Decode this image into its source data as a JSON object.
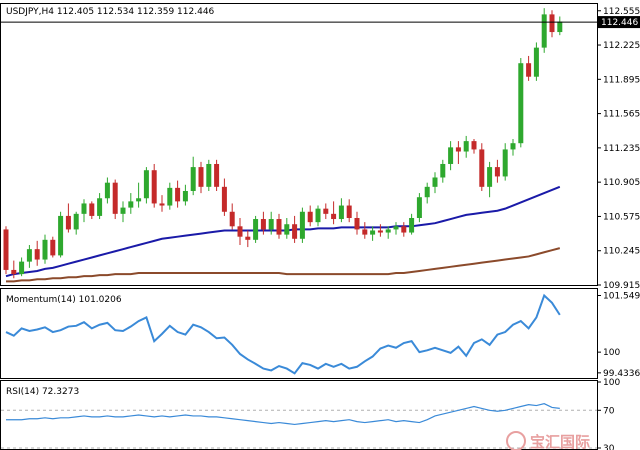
{
  "main_pane": {
    "header": "USDJPY,H4  112.405 112.534 112.359 112.446",
    "axis_labels": [
      "112.555",
      "112.225",
      "111.895",
      "111.565",
      "111.235",
      "110.905",
      "110.575",
      "110.245",
      "109.915"
    ],
    "current_price": "112.446",
    "axis_values": [
      112.555,
      112.225,
      111.895,
      111.565,
      111.235,
      110.905,
      110.575,
      110.245,
      109.915
    ]
  },
  "momentum_pane": {
    "header": "Momentum(14) 101.0206",
    "axis_labels": [
      "101.5495",
      "100",
      "99.4336"
    ],
    "axis_values": [
      101.5495,
      100,
      99.4336
    ]
  },
  "rsi_pane": {
    "header": "RSI(14) 72.3273",
    "axis_labels": [
      "100",
      "70",
      "30"
    ],
    "axis_values": [
      100,
      70,
      30
    ]
  },
  "watermark": {
    "text": "宝汇国际"
  },
  "colors": {
    "bull": "#2ea82e",
    "bear": "#c42a2a",
    "ma_fast": "#1a1aa8",
    "ma_slow": "#8b4a2b",
    "oscillator": "#3a8ad8",
    "watermark": "#e06464"
  },
  "chart_data": [
    {
      "type": "candlestick",
      "title": "USDJPY,H4",
      "ylim": [
        109.915,
        112.62
      ],
      "candles": [
        [
          110.45,
          110.48,
          110.02,
          110.06
        ],
        [
          110.06,
          110.15,
          109.98,
          110.02
        ],
        [
          110.02,
          110.18,
          110.0,
          110.14
        ],
        [
          110.14,
          110.3,
          110.08,
          110.26
        ],
        [
          110.26,
          110.34,
          110.1,
          110.16
        ],
        [
          110.16,
          110.4,
          110.12,
          110.35
        ],
        [
          110.35,
          110.38,
          110.18,
          110.2
        ],
        [
          110.2,
          110.62,
          110.18,
          110.58
        ],
        [
          110.58,
          110.7,
          110.42,
          110.45
        ],
        [
          110.45,
          110.62,
          110.4,
          110.6
        ],
        [
          110.6,
          110.74,
          110.52,
          110.7
        ],
        [
          110.7,
          110.72,
          110.55,
          110.58
        ],
        [
          110.58,
          110.8,
          110.55,
          110.75
        ],
        [
          110.75,
          110.95,
          110.7,
          110.9
        ],
        [
          110.9,
          110.93,
          110.55,
          110.6
        ],
        [
          110.6,
          110.72,
          110.52,
          110.66
        ],
        [
          110.66,
          110.8,
          110.6,
          110.72
        ],
        [
          110.72,
          110.9,
          110.66,
          110.75
        ],
        [
          110.75,
          111.05,
          110.7,
          111.02
        ],
        [
          111.02,
          111.08,
          110.66,
          110.7
        ],
        [
          110.7,
          110.78,
          110.62,
          110.68
        ],
        [
          110.68,
          110.9,
          110.64,
          110.85
        ],
        [
          110.85,
          110.92,
          110.66,
          110.72
        ],
        [
          110.72,
          110.88,
          110.68,
          110.82
        ],
        [
          110.82,
          111.15,
          110.78,
          111.05
        ],
        [
          111.05,
          111.1,
          110.8,
          110.86
        ],
        [
          110.86,
          111.12,
          110.82,
          111.08
        ],
        [
          111.08,
          111.12,
          110.82,
          110.86
        ],
        [
          110.86,
          110.94,
          110.58,
          110.62
        ],
        [
          110.62,
          110.7,
          110.45,
          110.48
        ],
        [
          110.48,
          110.56,
          110.3,
          110.38
        ],
        [
          110.38,
          110.44,
          110.28,
          110.35
        ],
        [
          110.35,
          110.58,
          110.32,
          110.55
        ],
        [
          110.55,
          110.62,
          110.4,
          110.45
        ],
        [
          110.45,
          110.62,
          110.4,
          110.55
        ],
        [
          110.55,
          110.6,
          110.36,
          110.4
        ],
        [
          110.4,
          110.56,
          110.36,
          110.5
        ],
        [
          110.5,
          110.58,
          110.32,
          110.36
        ],
        [
          110.36,
          110.66,
          110.32,
          110.62
        ],
        [
          110.62,
          110.68,
          110.48,
          110.52
        ],
        [
          110.52,
          110.68,
          110.48,
          110.65
        ],
        [
          110.65,
          110.7,
          110.55,
          110.6
        ],
        [
          110.6,
          110.72,
          110.5,
          110.55
        ],
        [
          110.55,
          110.75,
          110.52,
          110.68
        ],
        [
          110.68,
          110.74,
          110.52,
          110.56
        ],
        [
          110.56,
          110.62,
          110.4,
          110.45
        ],
        [
          110.45,
          110.52,
          110.36,
          110.4
        ],
        [
          110.4,
          110.48,
          110.34,
          110.44
        ],
        [
          110.44,
          110.5,
          110.38,
          110.42
        ],
        [
          110.42,
          110.48,
          110.36,
          110.45
        ],
        [
          110.45,
          110.52,
          110.4,
          110.48
        ],
        [
          110.48,
          110.52,
          110.38,
          110.42
        ],
        [
          110.42,
          110.6,
          110.4,
          110.56
        ],
        [
          110.56,
          110.8,
          110.52,
          110.76
        ],
        [
          110.76,
          110.9,
          110.7,
          110.86
        ],
        [
          110.86,
          111.0,
          110.8,
          110.95
        ],
        [
          110.95,
          111.12,
          110.9,
          111.08
        ],
        [
          111.08,
          111.3,
          111.02,
          111.24
        ],
        [
          111.24,
          111.3,
          111.08,
          111.2
        ],
        [
          111.2,
          111.35,
          111.14,
          111.3
        ],
        [
          111.3,
          111.32,
          111.18,
          111.22
        ],
        [
          111.22,
          111.28,
          110.82,
          110.86
        ],
        [
          110.86,
          111.1,
          110.76,
          111.05
        ],
        [
          111.05,
          111.12,
          110.9,
          110.96
        ],
        [
          110.96,
          111.28,
          110.92,
          111.22
        ],
        [
          111.22,
          111.32,
          111.16,
          111.28
        ],
        [
          111.28,
          112.1,
          111.24,
          112.05
        ],
        [
          112.05,
          112.12,
          111.88,
          111.92
        ],
        [
          111.92,
          112.25,
          111.88,
          112.2
        ],
        [
          112.2,
          112.58,
          112.15,
          112.52
        ],
        [
          112.52,
          112.56,
          112.3,
          112.35
        ],
        [
          112.35,
          112.5,
          112.32,
          112.45
        ]
      ],
      "ma_fast": [
        110.0,
        110.02,
        110.03,
        110.04,
        110.05,
        110.07,
        110.08,
        110.1,
        110.12,
        110.14,
        110.16,
        110.18,
        110.2,
        110.22,
        110.24,
        110.26,
        110.28,
        110.3,
        110.32,
        110.34,
        110.36,
        110.37,
        110.38,
        110.39,
        110.4,
        110.41,
        110.42,
        110.43,
        110.44,
        110.44,
        110.44,
        110.44,
        110.44,
        110.44,
        110.44,
        110.44,
        110.44,
        110.45,
        110.45,
        110.45,
        110.46,
        110.46,
        110.46,
        110.47,
        110.47,
        110.47,
        110.47,
        110.47,
        110.47,
        110.47,
        110.48,
        110.48,
        110.48,
        110.49,
        110.5,
        110.51,
        110.53,
        110.55,
        110.57,
        110.59,
        110.6,
        110.61,
        110.62,
        110.63,
        110.65,
        110.68,
        110.71,
        110.74,
        110.77,
        110.8,
        110.83,
        110.86
      ],
      "ma_slow": [
        109.95,
        109.95,
        109.96,
        109.96,
        109.97,
        109.97,
        109.98,
        109.98,
        109.99,
        109.99,
        110.0,
        110.0,
        110.01,
        110.01,
        110.02,
        110.02,
        110.02,
        110.03,
        110.03,
        110.03,
        110.03,
        110.03,
        110.03,
        110.03,
        110.03,
        110.03,
        110.03,
        110.03,
        110.03,
        110.03,
        110.03,
        110.03,
        110.03,
        110.03,
        110.03,
        110.03,
        110.02,
        110.02,
        110.02,
        110.02,
        110.02,
        110.02,
        110.02,
        110.02,
        110.02,
        110.02,
        110.02,
        110.02,
        110.02,
        110.02,
        110.03,
        110.03,
        110.04,
        110.05,
        110.06,
        110.07,
        110.08,
        110.09,
        110.1,
        110.11,
        110.12,
        110.13,
        110.14,
        110.15,
        110.16,
        110.17,
        110.18,
        110.19,
        110.21,
        110.23,
        110.25,
        110.27
      ]
    },
    {
      "type": "line",
      "title": "Momentum(14)",
      "ylim": [
        99.32,
        101.7
      ],
      "values": [
        100.55,
        100.45,
        100.65,
        100.58,
        100.62,
        100.68,
        100.55,
        100.6,
        100.7,
        100.72,
        100.82,
        100.65,
        100.75,
        100.8,
        100.6,
        100.58,
        100.7,
        100.85,
        100.95,
        100.3,
        100.5,
        100.72,
        100.55,
        100.48,
        100.75,
        100.68,
        100.55,
        100.38,
        100.4,
        100.2,
        99.95,
        99.8,
        99.68,
        99.55,
        99.5,
        99.62,
        99.55,
        99.42,
        99.7,
        99.65,
        99.55,
        99.68,
        99.6,
        99.68,
        99.55,
        99.6,
        99.75,
        99.88,
        100.1,
        100.18,
        100.12,
        100.25,
        100.3,
        100.0,
        100.05,
        100.12,
        100.05,
        99.98,
        100.15,
        99.9,
        100.25,
        100.35,
        100.2,
        100.48,
        100.55,
        100.75,
        100.85,
        100.65,
        100.95,
        101.55,
        101.35,
        101.02
      ]
    },
    {
      "type": "line",
      "title": "RSI(14)",
      "ylim": [
        30,
        100
      ],
      "values": [
        60,
        60,
        60,
        61,
        61,
        62,
        61,
        62,
        62,
        63,
        64,
        63,
        63,
        64,
        63,
        63,
        64,
        65,
        64,
        63,
        64,
        63,
        64,
        65,
        64,
        64,
        63,
        63,
        62,
        61,
        60,
        59,
        58,
        57,
        56,
        57,
        56,
        55,
        56,
        57,
        58,
        59,
        58,
        59,
        60,
        58,
        57,
        58,
        59,
        60,
        58,
        59,
        58,
        57,
        60,
        64,
        66,
        68,
        70,
        72,
        74,
        72,
        70,
        69,
        70,
        72,
        74,
        76,
        75,
        77,
        73,
        72
      ]
    }
  ]
}
